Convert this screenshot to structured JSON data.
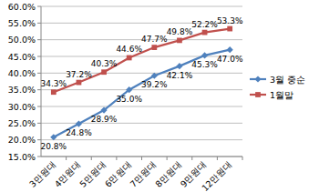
{
  "chart_data": {
    "type": "line",
    "categories": [
      "3만원대",
      "4만원대",
      "5만원대",
      "6만원대",
      "7만원대",
      "8만원대",
      "9만원대",
      "12만원대"
    ],
    "series": [
      {
        "name": "3월 중순",
        "color": "#4f81bd",
        "marker": "diamond",
        "values": [
          20.8,
          24.8,
          28.9,
          35.0,
          39.2,
          42.1,
          45.3,
          47.0
        ],
        "value_labels": [
          "20.8%",
          "24.8%",
          "28.9%",
          "35.0%",
          "39.2%",
          "42.1%",
          "45.3%",
          "47.0%"
        ]
      },
      {
        "name": "1월말",
        "color": "#c0504d",
        "marker": "square",
        "values": [
          34.3,
          37.2,
          40.3,
          44.6,
          47.7,
          49.8,
          52.2,
          53.3
        ],
        "value_labels": [
          "34.3%",
          "37.2%",
          "40.3%",
          "44.6%",
          "47.7%",
          "49.8%",
          "52.2%",
          "53.3%"
        ]
      }
    ],
    "ylim": [
      15,
      60
    ],
    "yticks": [
      {
        "value": 15,
        "label": "15.0%"
      },
      {
        "value": 20,
        "label": "20.0%"
      },
      {
        "value": 25,
        "label": "25.0%"
      },
      {
        "value": 30,
        "label": "30.0%"
      },
      {
        "value": 35,
        "label": "35.0%"
      },
      {
        "value": 40,
        "label": "40.0%"
      },
      {
        "value": 45,
        "label": "45.0%"
      },
      {
        "value": 50,
        "label": "50.0%"
      },
      {
        "value": 55,
        "label": "55.0%"
      },
      {
        "value": 60,
        "label": "60.0%"
      }
    ],
    "grid": true,
    "legend": "right",
    "data_labels": true
  }
}
